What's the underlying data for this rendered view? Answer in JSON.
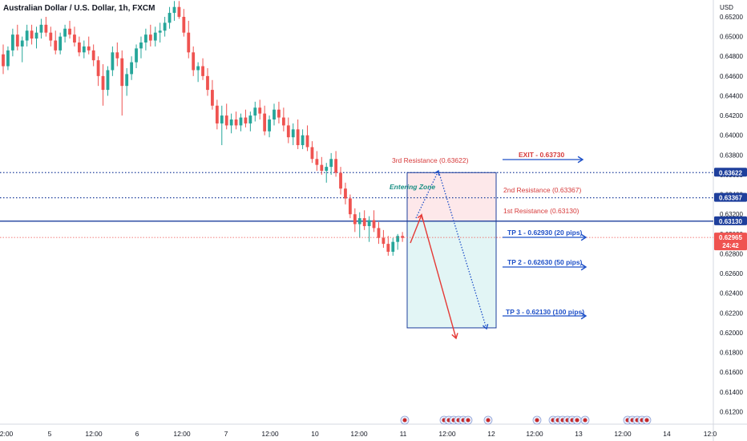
{
  "header": {
    "title": "Australian Dollar / U.S. Dollar, 1h, FXCM"
  },
  "chart_data": {
    "type": "candlestick",
    "y_axis": {
      "currency_label": "USD",
      "ylim": [
        0.6105,
        0.6536
      ],
      "ticks": [
        "0.65200",
        "0.65000",
        "0.64800",
        "0.64600",
        "0.64400",
        "0.64200",
        "0.64000",
        "0.63800",
        "0.63600",
        "0.63400",
        "0.63200",
        "0.63000",
        "0.62800",
        "0.62600",
        "0.62400",
        "0.62200",
        "0.62000",
        "0.61800",
        "0.61600",
        "0.61400",
        "0.61200"
      ]
    },
    "x_axis": {
      "ticks": [
        "2:00",
        "5",
        "12:00",
        "6",
        "12:00",
        "7",
        "12:00",
        "10",
        "12:00",
        "11",
        "12:00",
        "12",
        "12:00",
        "13",
        "12:00",
        "14",
        "12:0"
      ]
    },
    "candles": [
      [
        0.6482,
        0.6492,
        0.6462,
        0.647
      ],
      [
        0.647,
        0.649,
        0.6466,
        0.6486
      ],
      [
        0.6486,
        0.6508,
        0.648,
        0.6502
      ],
      [
        0.6502,
        0.6512,
        0.6486,
        0.649
      ],
      [
        0.649,
        0.65,
        0.6474,
        0.6496
      ],
      [
        0.6496,
        0.6512,
        0.649,
        0.6506
      ],
      [
        0.6506,
        0.6512,
        0.6492,
        0.6498
      ],
      [
        0.6498,
        0.651,
        0.6488,
        0.6504
      ],
      [
        0.6504,
        0.6518,
        0.6498,
        0.6512
      ],
      [
        0.6512,
        0.652,
        0.65,
        0.6504
      ],
      [
        0.6504,
        0.651,
        0.649,
        0.6496
      ],
      [
        0.6496,
        0.6506,
        0.6482,
        0.6486
      ],
      [
        0.6486,
        0.6504,
        0.6482,
        0.65
      ],
      [
        0.65,
        0.6512,
        0.6494,
        0.6508
      ],
      [
        0.6508,
        0.6516,
        0.6498,
        0.6502
      ],
      [
        0.6502,
        0.651,
        0.649,
        0.6494
      ],
      [
        0.6494,
        0.65,
        0.648,
        0.6484
      ],
      [
        0.6484,
        0.6496,
        0.6478,
        0.649
      ],
      [
        0.649,
        0.65,
        0.6482,
        0.6486
      ],
      [
        0.6486,
        0.6492,
        0.647,
        0.6476
      ],
      [
        0.6476,
        0.648,
        0.645,
        0.646
      ],
      [
        0.646,
        0.6472,
        0.643,
        0.6446
      ],
      [
        0.6446,
        0.647,
        0.644,
        0.6466
      ],
      [
        0.6466,
        0.649,
        0.646,
        0.6484
      ],
      [
        0.6484,
        0.6494,
        0.647,
        0.6478
      ],
      [
        0.6478,
        0.6486,
        0.642,
        0.645
      ],
      [
        0.645,
        0.6468,
        0.644,
        0.6462
      ],
      [
        0.6462,
        0.648,
        0.6456,
        0.6474
      ],
      [
        0.6474,
        0.6492,
        0.6468,
        0.6488
      ],
      [
        0.6488,
        0.65,
        0.6478,
        0.6494
      ],
      [
        0.6494,
        0.6508,
        0.6486,
        0.6502
      ],
      [
        0.6502,
        0.6512,
        0.649,
        0.6496
      ],
      [
        0.6496,
        0.651,
        0.649,
        0.6504
      ],
      [
        0.6504,
        0.6514,
        0.6494,
        0.6506
      ],
      [
        0.6506,
        0.652,
        0.65,
        0.6514
      ],
      [
        0.6514,
        0.653,
        0.6508,
        0.6524
      ],
      [
        0.6524,
        0.6536,
        0.6516,
        0.653
      ],
      [
        0.653,
        0.6536,
        0.6518,
        0.652
      ],
      [
        0.652,
        0.6528,
        0.65,
        0.6504
      ],
      [
        0.6504,
        0.6516,
        0.6478,
        0.6484
      ],
      [
        0.6484,
        0.649,
        0.646,
        0.6466
      ],
      [
        0.6466,
        0.6474,
        0.6454,
        0.647
      ],
      [
        0.647,
        0.6478,
        0.6456,
        0.646
      ],
      [
        0.646,
        0.6468,
        0.644,
        0.6446
      ],
      [
        0.6446,
        0.6456,
        0.6426,
        0.643
      ],
      [
        0.643,
        0.6436,
        0.6406,
        0.6412
      ],
      [
        0.6412,
        0.643,
        0.639,
        0.642
      ],
      [
        0.642,
        0.6432,
        0.6406,
        0.641
      ],
      [
        0.641,
        0.6422,
        0.6402,
        0.6416
      ],
      [
        0.6416,
        0.6424,
        0.6406,
        0.641
      ],
      [
        0.641,
        0.6422,
        0.6404,
        0.6418
      ],
      [
        0.6418,
        0.6426,
        0.6408,
        0.6412
      ],
      [
        0.6412,
        0.6424,
        0.6404,
        0.642
      ],
      [
        0.642,
        0.6434,
        0.6414,
        0.6428
      ],
      [
        0.6428,
        0.6436,
        0.6416,
        0.6422
      ],
      [
        0.6422,
        0.643,
        0.64,
        0.6404
      ],
      [
        0.6404,
        0.642,
        0.6398,
        0.6416
      ],
      [
        0.6416,
        0.6432,
        0.641,
        0.6426
      ],
      [
        0.6426,
        0.6434,
        0.6412,
        0.6418
      ],
      [
        0.6418,
        0.6428,
        0.6404,
        0.641
      ],
      [
        0.641,
        0.6418,
        0.6392,
        0.6398
      ],
      [
        0.6398,
        0.6412,
        0.639,
        0.6406
      ],
      [
        0.6406,
        0.6416,
        0.6386,
        0.639
      ],
      [
        0.639,
        0.6406,
        0.6386,
        0.64
      ],
      [
        0.64,
        0.641,
        0.6384,
        0.6388
      ],
      [
        0.6388,
        0.6394,
        0.6372,
        0.6376
      ],
      [
        0.6376,
        0.6384,
        0.6364,
        0.637
      ],
      [
        0.637,
        0.6378,
        0.636,
        0.6364
      ],
      [
        0.6364,
        0.6372,
        0.6352,
        0.6368
      ],
      [
        0.6368,
        0.6382,
        0.636,
        0.6376
      ],
      [
        0.6376,
        0.6384,
        0.6358,
        0.6362
      ],
      [
        0.6362,
        0.6368,
        0.634,
        0.6346
      ],
      [
        0.6346,
        0.6352,
        0.633,
        0.6336
      ],
      [
        0.6336,
        0.634,
        0.6316,
        0.632
      ],
      [
        0.632,
        0.6326,
        0.6302,
        0.631
      ],
      [
        0.631,
        0.6322,
        0.6296,
        0.6316
      ],
      [
        0.6316,
        0.6324,
        0.6304,
        0.6308
      ],
      [
        0.6308,
        0.6318,
        0.6292,
        0.6314
      ],
      [
        0.6314,
        0.6324,
        0.6302,
        0.6306
      ],
      [
        0.6306,
        0.6312,
        0.629,
        0.6296
      ],
      [
        0.6296,
        0.6304,
        0.6286,
        0.629
      ],
      [
        0.629,
        0.6298,
        0.6278,
        0.6282
      ],
      [
        0.6282,
        0.6296,
        0.6278,
        0.6292
      ],
      [
        0.6292,
        0.63,
        0.6284,
        0.6298
      ],
      [
        0.6298,
        0.6302,
        0.6292,
        0.6296
      ]
    ],
    "current_price": "0.62965",
    "countdown": "24:42",
    "levels": [
      {
        "label": "0.63622",
        "value": 0.63622,
        "style": "dotted"
      },
      {
        "label": "0.63367",
        "value": 0.63367,
        "style": "dotted"
      },
      {
        "label": "0.63130",
        "value": 0.6313,
        "style": "solid"
      }
    ],
    "annotations": {
      "resistance_3": "3rd Resistance (0.63622)",
      "resistance_2": "2nd Resistance (0.63367)",
      "resistance_1": "1st Resistance (0.63130)",
      "entering_zone": "Entering Zone",
      "exit": "EXIT - 0.63730",
      "tp1": "TP 1 - 0.62930 (20 pips)",
      "tp2": "TP 2 - 0.62630 (50 pips)",
      "tp3": "TP 3 - 0.62130 (100 pips)"
    },
    "colors": {
      "up": "#26a69a",
      "down": "#ef5350",
      "level_line": "#1e3f9c",
      "stop_zone": "#fde8ea",
      "target_zone": "#e2f5f5",
      "arrow_blue": "#1e50c8",
      "arrow_red": "#e53935"
    }
  }
}
